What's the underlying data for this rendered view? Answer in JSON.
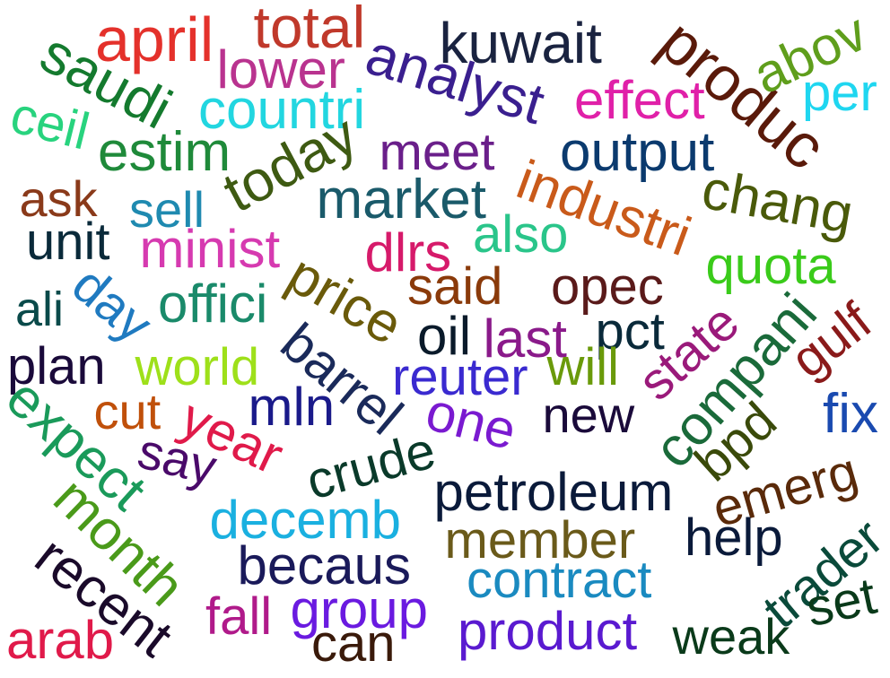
{
  "cloud": {
    "words": [
      {
        "text": "april",
        "color": "#e4312b"
      },
      {
        "text": "total",
        "color": "#c0392b"
      },
      {
        "text": "lower",
        "color": "#b9338f"
      },
      {
        "text": "kuwait",
        "color": "#1a2340"
      },
      {
        "text": "produc",
        "color": "#5a1a0a"
      },
      {
        "text": "abov",
        "color": "#5f9e1c"
      },
      {
        "text": "saudi",
        "color": "#147a2e"
      },
      {
        "text": "analyst",
        "color": "#3a1f8f"
      },
      {
        "text": "effect",
        "color": "#e020a8"
      },
      {
        "text": "per",
        "color": "#1fd6f0"
      },
      {
        "text": "ceil",
        "color": "#28d37e"
      },
      {
        "text": "countri",
        "color": "#22d6e0"
      },
      {
        "text": "estim",
        "color": "#1f8a3a"
      },
      {
        "text": "today",
        "color": "#3e5a12"
      },
      {
        "text": "meet",
        "color": "#6a1f8a"
      },
      {
        "text": "output",
        "color": "#0b3a6e"
      },
      {
        "text": "industri",
        "color": "#c95a1a"
      },
      {
        "text": "ask",
        "color": "#8a3a1a"
      },
      {
        "text": "sell",
        "color": "#1f8ab0"
      },
      {
        "text": "market",
        "color": "#1a5a6a"
      },
      {
        "text": "chang",
        "color": "#4a5a0a"
      },
      {
        "text": "unit",
        "color": "#0a2a3a"
      },
      {
        "text": "minist",
        "color": "#d63ab0"
      },
      {
        "text": "dlrs",
        "color": "#d61a6a"
      },
      {
        "text": "also",
        "color": "#2ac58a"
      },
      {
        "text": "quota",
        "color": "#3acb1a"
      },
      {
        "text": "ali",
        "color": "#0a4a4a"
      },
      {
        "text": "day",
        "color": "#1f7ac0"
      },
      {
        "text": "offici",
        "color": "#1a8a6a"
      },
      {
        "text": "price",
        "color": "#6a5a0a"
      },
      {
        "text": "said",
        "color": "#8a3a0a"
      },
      {
        "text": "opec",
        "color": "#5a1a1a"
      },
      {
        "text": "compani",
        "color": "#1a6a3a"
      },
      {
        "text": "gulf",
        "color": "#8a1a1a"
      },
      {
        "text": "plan",
        "color": "#1a0a3a"
      },
      {
        "text": "world",
        "color": "#9ee01a"
      },
      {
        "text": "barrel",
        "color": "#1a2a5a"
      },
      {
        "text": "oil",
        "color": "#0a1a2a"
      },
      {
        "text": "last",
        "color": "#8a1a8a"
      },
      {
        "text": "pct",
        "color": "#0a2a3a"
      },
      {
        "text": "state",
        "color": "#9a1a7a"
      },
      {
        "text": "reuter",
        "color": "#3a2ad0"
      },
      {
        "text": "will",
        "color": "#6a9a0a"
      },
      {
        "text": "expect",
        "color": "#1a9a5a"
      },
      {
        "text": "cut",
        "color": "#c0500a"
      },
      {
        "text": "year",
        "color": "#e01a4a"
      },
      {
        "text": "mln",
        "color": "#1a1a8a"
      },
      {
        "text": "one",
        "color": "#7a1ad0"
      },
      {
        "text": "new",
        "color": "#1a0a3a"
      },
      {
        "text": "bpd",
        "color": "#3a4a0a"
      },
      {
        "text": "fix",
        "color": "#1a4ab0"
      },
      {
        "text": "say",
        "color": "#4a0a6a"
      },
      {
        "text": "crude",
        "color": "#0a3a2a"
      },
      {
        "text": "month",
        "color": "#4a9a1a"
      },
      {
        "text": "petroleum",
        "color": "#0a1a3a"
      },
      {
        "text": "emerg",
        "color": "#5a2a0a"
      },
      {
        "text": "decemb",
        "color": "#1ab0e0"
      },
      {
        "text": "member",
        "color": "#6a5a1a"
      },
      {
        "text": "help",
        "color": "#0a1a3a"
      },
      {
        "text": "trader",
        "color": "#0a4a3a"
      },
      {
        "text": "recent",
        "color": "#1a0a2a"
      },
      {
        "text": "becaus",
        "color": "#1a1a5a"
      },
      {
        "text": "contract",
        "color": "#1a8ac0"
      },
      {
        "text": "set",
        "color": "#0a3a1a"
      },
      {
        "text": "arab",
        "color": "#e01a4a"
      },
      {
        "text": "fall",
        "color": "#b01a8a"
      },
      {
        "text": "group",
        "color": "#6a1ae0"
      },
      {
        "text": "can",
        "color": "#3a1a0a"
      },
      {
        "text": "product",
        "color": "#5a1ad0"
      },
      {
        "text": "weak",
        "color": "#0a3a1a"
      }
    ]
  }
}
